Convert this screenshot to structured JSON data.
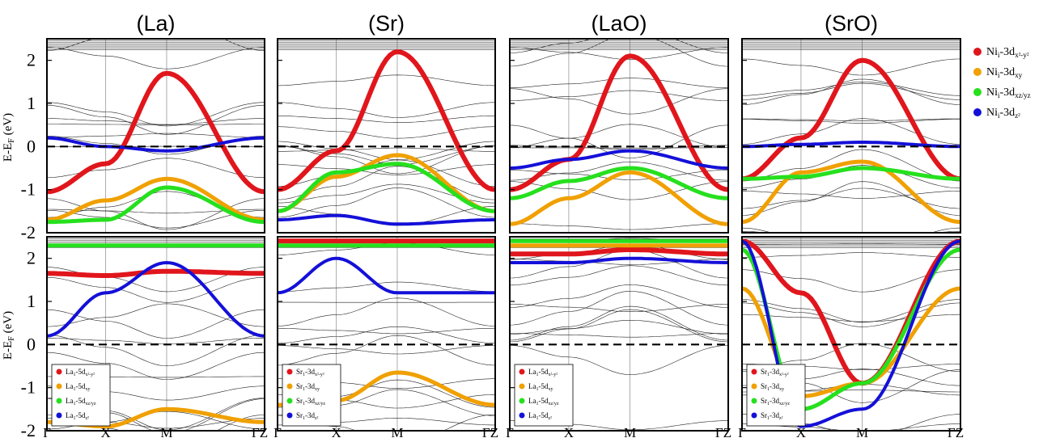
{
  "figure": {
    "column_titles": [
      "(La)",
      "(Sr)",
      "(LaO)",
      "(SrO)"
    ],
    "y_axis_label": "E-E",
    "y_axis_label_sub": "F",
    "y_axis_unit": " (eV)",
    "k_path_labels": [
      "Γ",
      "X",
      "M",
      "ΓZ"
    ],
    "colors": {
      "red": "#e0161c",
      "orange": "#f0a000",
      "green": "#26e01e",
      "blue": "#1410d8",
      "black": "#000000",
      "grid": "#999999"
    },
    "legend_top": [
      {
        "color": "red",
        "main": "Ni",
        "sub": "i",
        "orbital": "-3d",
        "orb_sub": "x²-y²"
      },
      {
        "color": "orange",
        "main": "Ni",
        "sub": "i",
        "orbital": "-3d",
        "orb_sub": "xy"
      },
      {
        "color": "green",
        "main": "Ni",
        "sub": "i",
        "orbital": "-3d",
        "orb_sub": "xz/yz"
      },
      {
        "color": "blue",
        "main": "Ni",
        "sub": "i",
        "orbital": "-3d",
        "orb_sub": "z²"
      }
    ],
    "panel_legends": [
      {
        "panel": "La",
        "entries": [
          {
            "color": "red",
            "main": "La",
            "sub": "1",
            "orbital": "-5d",
            "orb_sub": "x²-y²"
          },
          {
            "color": "orange",
            "main": "La",
            "sub": "1",
            "orbital": "-5d",
            "orb_sub": "xy"
          },
          {
            "color": "green",
            "main": "La",
            "sub": "1",
            "orbital": "-5d",
            "orb_sub": "xz/yz"
          },
          {
            "color": "blue",
            "main": "La",
            "sub": "1",
            "orbital": "-5d",
            "orb_sub": "z²"
          }
        ]
      },
      {
        "panel": "Sr",
        "entries": [
          {
            "color": "red",
            "main": "Sr",
            "sub": "1",
            "orbital": "-3d",
            "orb_sub": "x²-y²"
          },
          {
            "color": "orange",
            "main": "Sr",
            "sub": "1",
            "orbital": "-3d",
            "orb_sub": "xy"
          },
          {
            "color": "green",
            "main": "Sr",
            "sub": "1",
            "orbital": "-3d",
            "orb_sub": "xz/yz"
          },
          {
            "color": "blue",
            "main": "Sr",
            "sub": "1",
            "orbital": "-3d",
            "orb_sub": "z²"
          }
        ]
      },
      {
        "panel": "LaO",
        "entries": [
          {
            "color": "red",
            "main": "La",
            "sub": "1",
            "orbital": "-5d",
            "orb_sub": "x²-y²"
          },
          {
            "color": "orange",
            "main": "La",
            "sub": "1",
            "orbital": "-5d",
            "orb_sub": "xy"
          },
          {
            "color": "green",
            "main": "La",
            "sub": "1",
            "orbital": "-5d",
            "orb_sub": "xz/yz"
          },
          {
            "color": "blue",
            "main": "La",
            "sub": "1",
            "orbital": "-5d",
            "orb_sub": "z²"
          }
        ]
      },
      {
        "panel": "SrO",
        "entries": [
          {
            "color": "red",
            "main": "Sr",
            "sub": "1",
            "orbital": "-3d",
            "orb_sub": "x²-y²"
          },
          {
            "color": "orange",
            "main": "Sr",
            "sub": "1",
            "orbital": "-3d",
            "orb_sub": "xy"
          },
          {
            "color": "green",
            "main": "Sr",
            "sub": "1",
            "orbital": "-3d",
            "orb_sub": "xz/yz"
          },
          {
            "color": "blue",
            "main": "Sr",
            "sub": "1",
            "orbital": "-3d",
            "orb_sub": "z²"
          }
        ]
      }
    ]
  },
  "chart_data": [
    {
      "type": "line",
      "panel": "La (Ni)",
      "ylim": [
        -2,
        2.5
      ],
      "y_ticks": [
        2,
        1,
        0,
        -1,
        -2
      ],
      "fermi_level": 0,
      "x": [
        "Γ",
        "X",
        "M",
        "Γ"
      ],
      "series": [
        {
          "name": "Ni1-3dx²-y²",
          "color": "red",
          "values": [
            -1.05,
            -0.4,
            1.7,
            -1.05
          ]
        },
        {
          "name": "Ni1-3dxy",
          "color": "orange",
          "values": [
            -1.7,
            -1.25,
            -0.75,
            -1.7
          ]
        },
        {
          "name": "Ni1-3dxz/yz",
          "color": "green",
          "values": [
            -1.75,
            -1.7,
            -0.95,
            -1.75
          ]
        },
        {
          "name": "Ni1-3dz²",
          "color": "blue",
          "values": [
            0.2,
            0.0,
            -0.1,
            0.2
          ]
        }
      ]
    },
    {
      "type": "line",
      "panel": "Sr (Ni)",
      "ylim": [
        -2,
        2.5
      ],
      "y_ticks": [
        2,
        1,
        0,
        -1,
        -2
      ],
      "fermi_level": 0,
      "x": [
        "Γ",
        "X",
        "M",
        "Γ"
      ],
      "series": [
        {
          "name": "Ni1-3dx²-y²",
          "color": "red",
          "values": [
            -1.0,
            -0.1,
            2.2,
            -1.0
          ]
        },
        {
          "name": "Ni1-3dxy",
          "color": "orange",
          "values": [
            -1.5,
            -0.7,
            -0.2,
            -1.5
          ]
        },
        {
          "name": "Ni1-3dxz/yz",
          "color": "green",
          "values": [
            -1.5,
            -0.6,
            -0.4,
            -1.5
          ]
        },
        {
          "name": "Ni1-3dz²",
          "color": "blue",
          "values": [
            -1.7,
            -1.6,
            -1.8,
            -1.7
          ]
        }
      ]
    },
    {
      "type": "line",
      "panel": "LaO (Ni)",
      "ylim": [
        -2,
        2.5
      ],
      "y_ticks": [
        2,
        1,
        0,
        -1,
        -2
      ],
      "fermi_level": 0,
      "x": [
        "Γ",
        "X",
        "M",
        "Γ"
      ],
      "series": [
        {
          "name": "Ni1-3dx²-y²",
          "color": "red",
          "values": [
            -1.0,
            -0.3,
            2.1,
            -1.0
          ]
        },
        {
          "name": "Ni1-3dxy",
          "color": "orange",
          "values": [
            -1.8,
            -1.2,
            -0.6,
            -1.8
          ]
        },
        {
          "name": "Ni1-3dxz/yz",
          "color": "green",
          "values": [
            -1.2,
            -0.8,
            -0.5,
            -1.2
          ]
        },
        {
          "name": "Ni1-3dz²",
          "color": "blue",
          "values": [
            -0.5,
            -0.3,
            -0.1,
            -0.5
          ]
        }
      ]
    },
    {
      "type": "line",
      "panel": "SrO (Ni)",
      "ylim": [
        -2,
        2.5
      ],
      "y_ticks": [
        2,
        1,
        0,
        -1,
        -2
      ],
      "fermi_level": 0,
      "x": [
        "Γ",
        "X",
        "M",
        "Γ"
      ],
      "series": [
        {
          "name": "Ni1-3dx²-y²",
          "color": "red",
          "values": [
            -0.75,
            0.2,
            2.0,
            -0.75
          ]
        },
        {
          "name": "Ni1-3dxy",
          "color": "orange",
          "values": [
            -1.75,
            -0.6,
            -0.35,
            -1.75
          ]
        },
        {
          "name": "Ni1-3dxz/yz",
          "color": "green",
          "values": [
            -0.75,
            -0.7,
            -0.5,
            -0.75
          ]
        },
        {
          "name": "Ni1-3dz²",
          "color": "blue",
          "values": [
            0.0,
            0.05,
            0.1,
            0.0
          ]
        }
      ]
    },
    {
      "type": "line",
      "panel": "La (La)",
      "ylim": [
        -2,
        2.5
      ],
      "y_ticks": [
        2,
        1,
        0,
        -1,
        -2
      ],
      "fermi_level": 0,
      "x": [
        "Γ",
        "X",
        "M",
        "Γ"
      ],
      "series": [
        {
          "name": "La1-5dx²-y²",
          "color": "red",
          "values": [
            1.65,
            1.6,
            1.7,
            1.65
          ]
        },
        {
          "name": "La1-5dxy",
          "color": "orange",
          "values": [
            -1.8,
            -1.9,
            -1.5,
            -1.8
          ]
        },
        {
          "name": "La1-5dxz/yz",
          "color": "green",
          "values": [
            2.3,
            2.3,
            2.3,
            2.3
          ]
        },
        {
          "name": "La1-5dz²",
          "color": "blue",
          "values": [
            0.2,
            1.2,
            1.9,
            0.2
          ]
        }
      ]
    },
    {
      "type": "line",
      "panel": "Sr (Sr)",
      "ylim": [
        -2,
        2.5
      ],
      "y_ticks": [
        2,
        1,
        0,
        -1,
        -2
      ],
      "fermi_level": 0,
      "x": [
        "Γ",
        "X",
        "M",
        "Γ"
      ],
      "series": [
        {
          "name": "Sr1-3dx²-y²",
          "color": "red",
          "values": [
            2.4,
            2.4,
            2.4,
            2.4
          ]
        },
        {
          "name": "Sr1-3dxy",
          "color": "orange",
          "values": [
            -1.4,
            -1.3,
            -0.65,
            -1.4
          ]
        },
        {
          "name": "Sr1-3dxz/yz",
          "color": "green",
          "values": [
            2.3,
            2.3,
            2.3,
            2.3
          ]
        },
        {
          "name": "Sr1-3dz²",
          "color": "blue",
          "values": [
            1.2,
            2.0,
            1.2,
            1.2
          ]
        }
      ]
    },
    {
      "type": "line",
      "panel": "LaO (La)",
      "ylim": [
        -2,
        2.5
      ],
      "y_ticks": [
        2,
        1,
        0,
        -1,
        -2
      ],
      "fermi_level": 0,
      "x": [
        "Γ",
        "X",
        "M",
        "Γ"
      ],
      "series": [
        {
          "name": "La1-5dx²-y²",
          "color": "red",
          "values": [
            2.1,
            2.1,
            2.2,
            2.1
          ]
        },
        {
          "name": "La1-5dxy",
          "color": "orange",
          "values": [
            2.3,
            2.3,
            2.3,
            2.3
          ]
        },
        {
          "name": "La1-5dxz/yz",
          "color": "green",
          "values": [
            2.4,
            2.4,
            2.4,
            2.4
          ]
        },
        {
          "name": "La1-5dz²",
          "color": "blue",
          "values": [
            1.9,
            1.9,
            2.0,
            1.9
          ]
        }
      ]
    },
    {
      "type": "line",
      "panel": "SrO (Sr)",
      "ylim": [
        -2,
        2.5
      ],
      "y_ticks": [
        2,
        1,
        0,
        -1,
        -2
      ],
      "fermi_level": 0,
      "x": [
        "Γ",
        "X",
        "M",
        "Γ"
      ],
      "series": [
        {
          "name": "Sr1-3dx²-y²",
          "color": "red",
          "values": [
            2.4,
            1.2,
            -0.9,
            2.4
          ]
        },
        {
          "name": "Sr1-3dxy",
          "color": "orange",
          "values": [
            1.3,
            -1.2,
            -0.9,
            1.3
          ]
        },
        {
          "name": "Sr1-3dxz/yz",
          "color": "green",
          "values": [
            2.2,
            -1.5,
            -0.9,
            2.2
          ]
        },
        {
          "name": "Sr1-3dz²",
          "color": "blue",
          "values": [
            2.4,
            -1.9,
            -1.5,
            2.4
          ]
        }
      ]
    }
  ]
}
